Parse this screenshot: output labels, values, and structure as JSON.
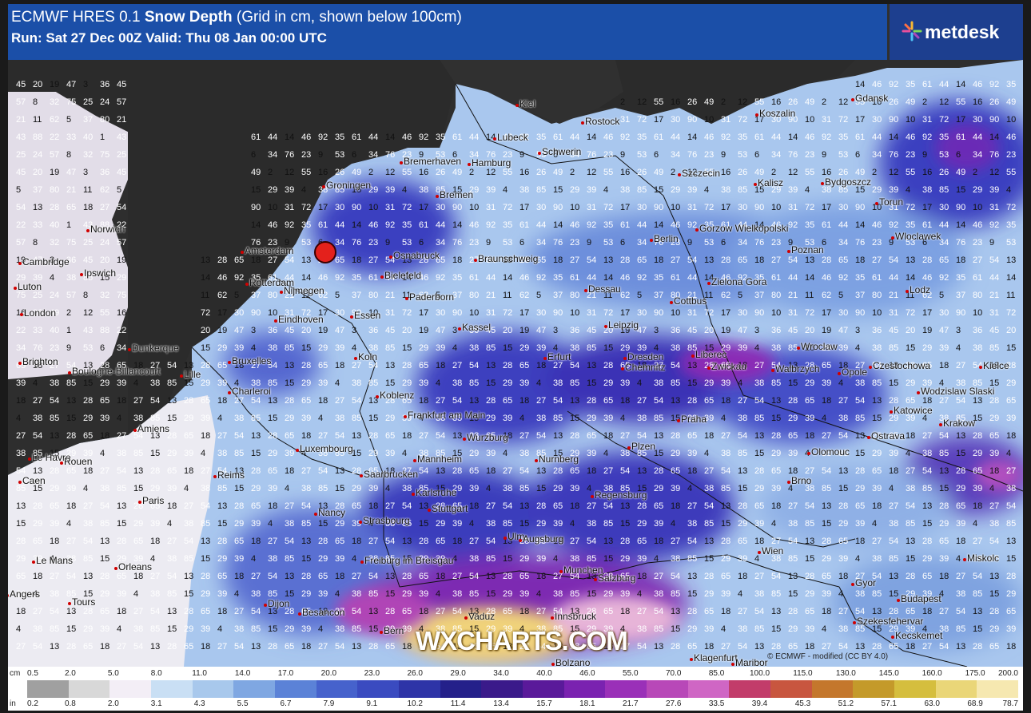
{
  "header": {
    "title_prefix": "ECMWF HRES 0.1",
    "title_bold": "Snow Depth",
    "title_suffix": "(Grid in cm, shown below 100cm)",
    "run_line": "Run: Sat 27 Dec 00Z Valid: Thu 08 Jan 00:00 UTC"
  },
  "logo": {
    "text": "metdesk",
    "icon": "metdesk-star-icon"
  },
  "watermark": "WXCHARTS.COM",
  "credit": "© ECMWF - modified (CC BY 4.0)",
  "colors": {
    "land_dark": "#303030",
    "sea": "#2b2b2b",
    "snow_light": "#b9d3ef",
    "snow_mid": "#4a5ed0",
    "snow_deep": "#7a22b8",
    "snow_very_deep": "#f0d27a",
    "header_bg": "#1b4fa8"
  },
  "legend": {
    "cm_unit": "cm",
    "in_unit": "in",
    "cm_labels": [
      "0.5",
      "2.0",
      "5.0",
      "8.0",
      "11.0",
      "14.0",
      "17.0",
      "20.0",
      "23.0",
      "26.0",
      "29.0",
      "34.0",
      "40.0",
      "46.0",
      "55.0",
      "70.0",
      "85.0",
      "100.0",
      "115.0",
      "130.0",
      "145.0",
      "160.0",
      "175.0",
      "200.0"
    ],
    "in_labels": [
      "0.2",
      "0.8",
      "2.0",
      "3.1",
      "4.3",
      "5.5",
      "6.7",
      "7.9",
      "9.1",
      "10.2",
      "11.4",
      "13.4",
      "15.7",
      "18.1",
      "21.7",
      "27.6",
      "33.5",
      "39.4",
      "45.3",
      "51.2",
      "57.1",
      "63.0",
      "68.9",
      "78.7"
    ],
    "cell_colors": [
      "#a0a0a0",
      "#d8d8d8",
      "#f3eef6",
      "#c9dff4",
      "#a8c8ec",
      "#7fa7e2",
      "#5b82d7",
      "#4662cc",
      "#3a4bc0",
      "#2e34a7",
      "#24208a",
      "#3a1a8a",
      "#5a1a9a",
      "#7a22b0",
      "#9a30b8",
      "#b848b8",
      "#cf66c4",
      "#c23c6a",
      "#c8563f",
      "#c4772c",
      "#c49a2a",
      "#d5be3e",
      "#ead678",
      "#f6e8b0"
    ]
  },
  "cities": [
    {
      "name": "Norwich"
    },
    {
      "name": "Cambridge"
    },
    {
      "name": "Ipswich"
    },
    {
      "name": "Luton"
    },
    {
      "name": "London"
    },
    {
      "name": "Brighton"
    },
    {
      "name": "Dunkerque"
    },
    {
      "name": "Boulogne-Billancourt"
    },
    {
      "name": "Lille"
    },
    {
      "name": "Amiens"
    },
    {
      "name": "Le Havre"
    },
    {
      "name": "Rouen"
    },
    {
      "name": "Caen"
    },
    {
      "name": "Paris"
    },
    {
      "name": "Reims"
    },
    {
      "name": "Le Mans"
    },
    {
      "name": "Orleans"
    },
    {
      "name": "Tours"
    },
    {
      "name": "Angers"
    },
    {
      "name": "Dijon"
    },
    {
      "name": "Besancon"
    },
    {
      "name": "Nancy"
    },
    {
      "name": "Strasbourg"
    },
    {
      "name": "Luxembourg"
    },
    {
      "name": "Charleroi"
    },
    {
      "name": "Bruxelles"
    },
    {
      "name": "Eindhoven"
    },
    {
      "name": "Rotterdam"
    },
    {
      "name": "Amsterdam"
    },
    {
      "name": "Groningen"
    },
    {
      "name": "Nijmegen"
    },
    {
      "name": "Essen"
    },
    {
      "name": "Koln"
    },
    {
      "name": "Koblenz"
    },
    {
      "name": "Frankfurt am Main"
    },
    {
      "name": "Saarbrucken"
    },
    {
      "name": "Karlsruhe"
    },
    {
      "name": "Mannheim"
    },
    {
      "name": "Stuttgart"
    },
    {
      "name": "Freiburg im Breisgau"
    },
    {
      "name": "Bern"
    },
    {
      "name": "Vaduz"
    },
    {
      "name": "Ulm"
    },
    {
      "name": "Augsburg"
    },
    {
      "name": "Munchen"
    },
    {
      "name": "Innsbruck"
    },
    {
      "name": "Bolzano"
    },
    {
      "name": "Salzburg"
    },
    {
      "name": "Regensburg"
    },
    {
      "name": "Nurnberg"
    },
    {
      "name": "Wurzburg"
    },
    {
      "name": "Erfurt"
    },
    {
      "name": "Kassel"
    },
    {
      "name": "Paderborn"
    },
    {
      "name": "Bielefeld"
    },
    {
      "name": "Osnabruck"
    },
    {
      "name": "Bremen"
    },
    {
      "name": "Bremerhaven"
    },
    {
      "name": "Hamburg"
    },
    {
      "name": "Lubeck"
    },
    {
      "name": "Kiel"
    },
    {
      "name": "Rostock"
    },
    {
      "name": "Schwerin"
    },
    {
      "name": "Braunschweig"
    },
    {
      "name": "Dessau"
    },
    {
      "name": "Leipzig"
    },
    {
      "name": "Dresden"
    },
    {
      "name": "Chemnitz"
    },
    {
      "name": "Cottbus"
    },
    {
      "name": "Berlin"
    },
    {
      "name": "Szczecin"
    },
    {
      "name": "Gorzow Wielkopolski"
    },
    {
      "name": "Zielona Gora"
    },
    {
      "name": "Poznan"
    },
    {
      "name": "Kalisz"
    },
    {
      "name": "Koszalin"
    },
    {
      "name": "Gdansk"
    },
    {
      "name": "Bydgoszcz"
    },
    {
      "name": "Torun"
    },
    {
      "name": "Wloclawek"
    },
    {
      "name": "Lodz"
    },
    {
      "name": "Wroclaw"
    },
    {
      "name": "Walbrzych"
    },
    {
      "name": "Opole"
    },
    {
      "name": "Czestochowa"
    },
    {
      "name": "Kielce"
    },
    {
      "name": "Katowice"
    },
    {
      "name": "Wodzislaw Slaski"
    },
    {
      "name": "Krakow"
    },
    {
      "name": "Ostrava"
    },
    {
      "name": "Olomouc"
    },
    {
      "name": "Brno"
    },
    {
      "name": "Praha"
    },
    {
      "name": "Plzen"
    },
    {
      "name": "Wien"
    },
    {
      "name": "Gyor"
    },
    {
      "name": "Budapest"
    },
    {
      "name": "Szekesfehervar"
    },
    {
      "name": "Kecskemet"
    },
    {
      "name": "Miskolc"
    },
    {
      "name": "Klagenfurt"
    },
    {
      "name": "Maribor"
    },
    {
      "name": "Liberec"
    },
    {
      "name": "Zwickau"
    }
  ],
  "grid_values": [
    "3",
    "2",
    "13",
    "17",
    "25",
    "23",
    "21",
    "15",
    "22",
    "35",
    "36",
    "12",
    "28",
    "30",
    "24",
    "9",
    "11",
    "29",
    "33",
    "61",
    "45",
    "55",
    "65",
    "90",
    "57",
    "53",
    "62",
    "39",
    "40",
    "44",
    "20",
    "16",
    "18",
    "10",
    "8",
    "6",
    "5",
    "4",
    "1",
    "14",
    "19",
    "26",
    "27",
    "31",
    "32",
    "34",
    "37",
    "38",
    "43",
    "46",
    "47",
    "49",
    "54",
    "72",
    "75",
    "76",
    "80",
    "85",
    "88",
    "92"
  ],
  "marker": "location-marker"
}
